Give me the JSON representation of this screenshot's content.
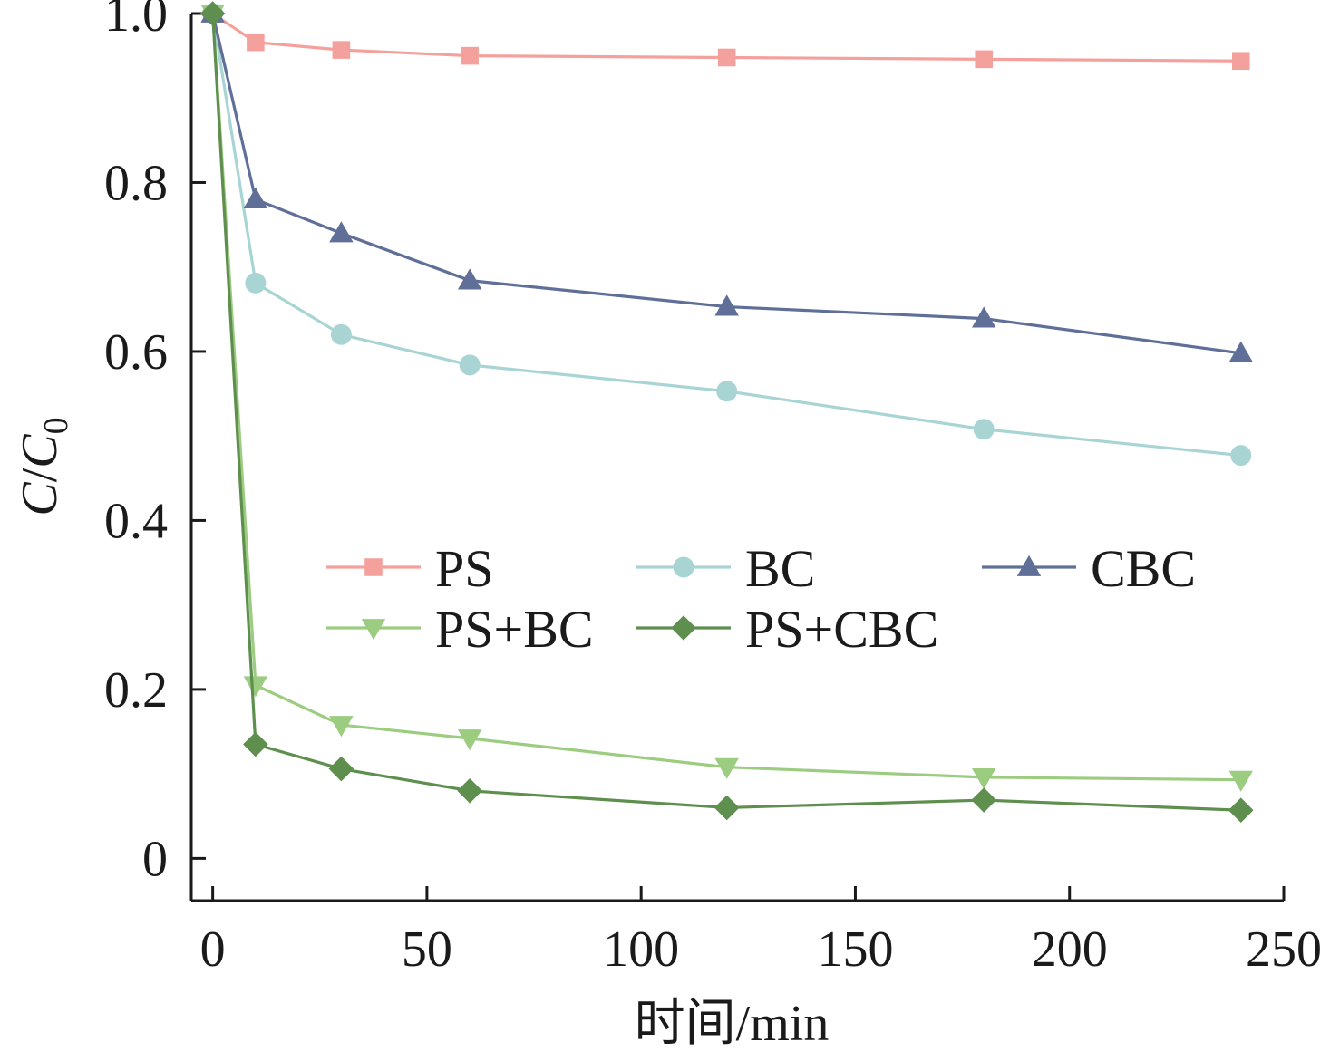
{
  "chart_data": {
    "type": "line",
    "title": "",
    "xlabel": "时间/min",
    "ylabel": {
      "main": "C",
      "slash": "/",
      "sub_base": "C",
      "subscript": "0"
    },
    "xlim": [
      -5,
      250
    ],
    "ylim": [
      -0.05,
      1.0
    ],
    "xticks": [
      0,
      50,
      100,
      150,
      200,
      250
    ],
    "xtick_labels": [
      "0",
      "50",
      "100",
      "150",
      "200",
      "250"
    ],
    "yticks": [
      0,
      0.2,
      0.4,
      0.6,
      0.8,
      1.0
    ],
    "ytick_labels": [
      "0",
      "0.2",
      "0.4",
      "0.6",
      "0.8",
      "1.0"
    ],
    "grid": false,
    "legend_position": "center-left, two rows of three columns",
    "x": [
      0,
      10,
      30,
      60,
      120,
      180,
      240
    ],
    "series": [
      {
        "name": "PS",
        "color": "#f4a09c",
        "marker": "square",
        "values": [
          1.0,
          0.966,
          0.957,
          0.95,
          0.948,
          0.946,
          0.944
        ]
      },
      {
        "name": "BC",
        "color": "#a8d5d4",
        "marker": "circle",
        "values": [
          1.0,
          0.681,
          0.62,
          0.584,
          0.553,
          0.508,
          0.477
        ]
      },
      {
        "name": "CBC",
        "color": "#5f6f98",
        "marker": "triangle-up",
        "values": [
          1.0,
          0.78,
          0.74,
          0.684,
          0.653,
          0.639,
          0.598
        ]
      },
      {
        "name": "PS+BC",
        "color": "#9ccc80",
        "marker": "triangle-down",
        "values": [
          1.0,
          0.205,
          0.158,
          0.142,
          0.108,
          0.096,
          0.093
        ]
      },
      {
        "name": "PS+CBC",
        "color": "#5f8f4e",
        "marker": "diamond",
        "values": [
          1.0,
          0.135,
          0.106,
          0.08,
          0.06,
          0.069,
          0.057
        ]
      }
    ]
  }
}
